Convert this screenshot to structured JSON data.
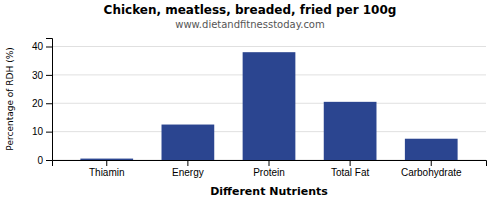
{
  "chart_data": {
    "type": "bar",
    "title": "Chicken, meatless, breaded, fried per 100g",
    "subtitle": "www.dietandfitnesstoday.com",
    "categories": [
      "Thiamin",
      "Energy",
      "Protein",
      "Total Fat",
      "Carbohydrate"
    ],
    "values": [
      0.5,
      12.5,
      38.0,
      20.5,
      7.5
    ],
    "color": "#2b4590",
    "xlabel": "Different Nutrients",
    "ylabel": "Percentage of RDH (%)",
    "ylim": [
      0,
      43
    ],
    "yticks": [
      0,
      10,
      20,
      30,
      40
    ],
    "grid": true
  }
}
